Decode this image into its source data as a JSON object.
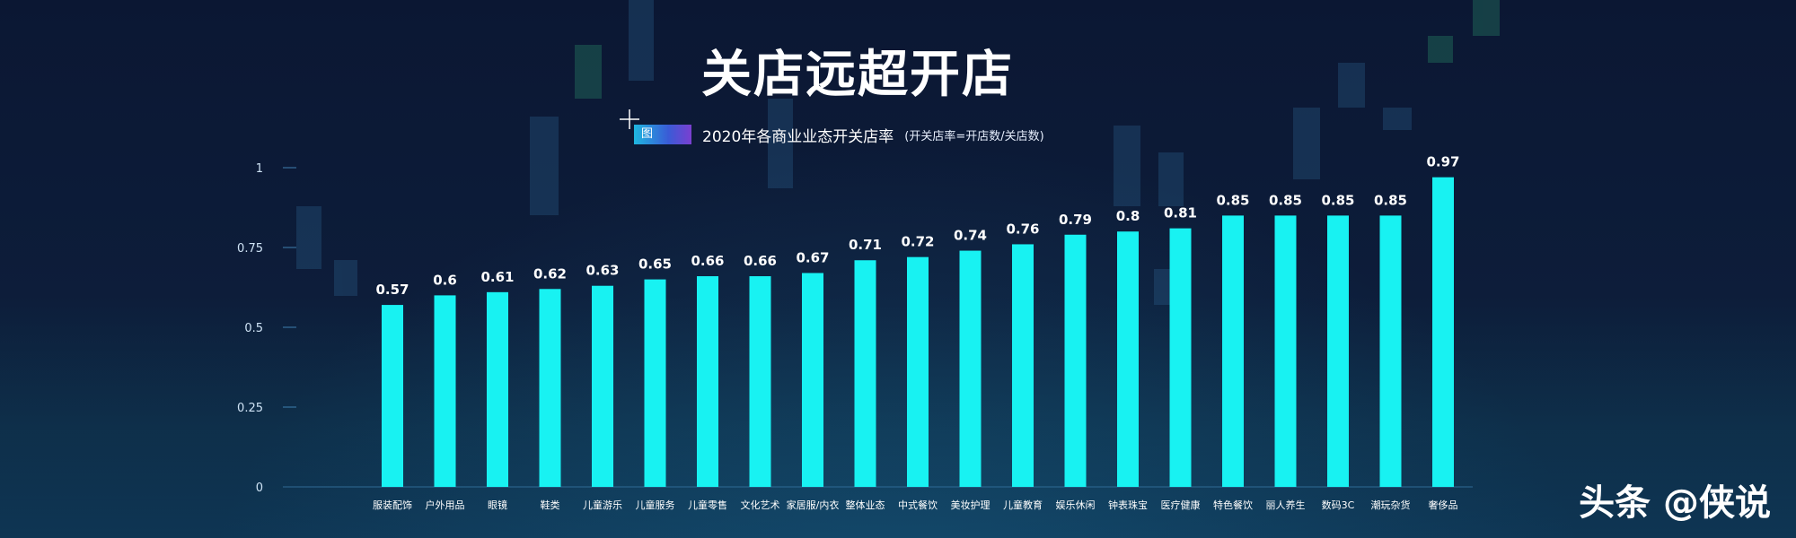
{
  "header": {
    "headline": "关店远超开店",
    "badge": "图",
    "subtitle": "2020年各商业业态开关店率",
    "formula": "(开关店率=开店数/关店数)"
  },
  "watermark": "头条 @侠说",
  "colors": {
    "bar": "#18f2f2",
    "label": "#ffffff",
    "axis": "#cfe3f5"
  },
  "chart_data": {
    "type": "bar",
    "categories": [
      "服装配饰",
      "户外用品",
      "眼镜",
      "鞋类",
      "儿童游乐",
      "儿童服务",
      "儿童零售",
      "文化艺术",
      "家居服/内衣",
      "整体业态",
      "中式餐饮",
      "美妆护理",
      "儿童教育",
      "娱乐休闲",
      "钟表珠宝",
      "医疗健康",
      "特色餐饮",
      "丽人养生",
      "数码3C",
      "潮玩杂货",
      "奢侈品"
    ],
    "values": [
      0.57,
      0.6,
      0.61,
      0.62,
      0.63,
      0.65,
      0.66,
      0.66,
      0.67,
      0.71,
      0.72,
      0.74,
      0.76,
      0.79,
      0.8,
      0.81,
      0.85,
      0.85,
      0.85,
      0.85,
      0.97
    ],
    "value_labels": [
      "0.57",
      "0.6",
      "0.61",
      "0.62",
      "0.63",
      "0.65",
      "0.66",
      "0.66",
      "0.67",
      "0.71",
      "0.72",
      "0.74",
      "0.76",
      "0.79",
      "0.8",
      "0.81",
      "0.85",
      "0.85",
      "0.85",
      "0.85",
      "0.97"
    ],
    "yticks": [
      "0",
      "0.25",
      "0.5",
      "0.75",
      "1"
    ],
    "ylim": [
      0,
      1
    ],
    "grid": false
  }
}
